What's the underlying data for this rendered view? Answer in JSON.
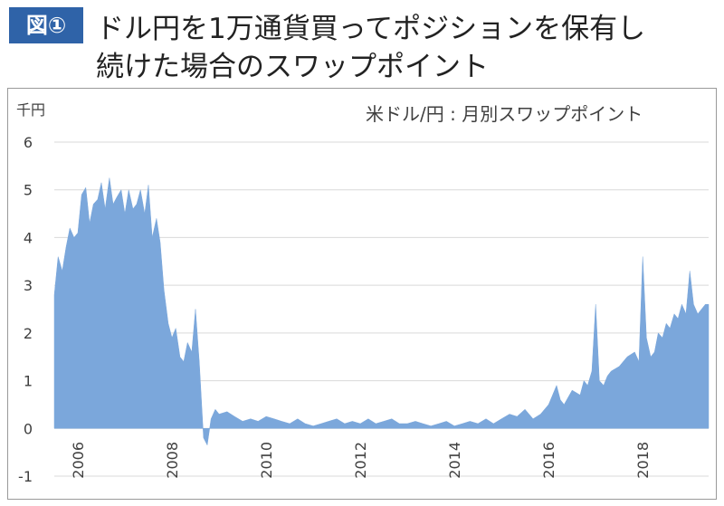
{
  "header": {
    "badge": "図①",
    "title_line1": "ドル円を1万通貨買ってポジションを保有し",
    "title_line2": "続けた場合のスワップポイント"
  },
  "chart_data": {
    "type": "area",
    "title": "米ドル/円 : 月別スワップポイント",
    "ylabel": "千円",
    "xlabel": "",
    "ylim": [
      -1,
      6
    ],
    "xlim": [
      2005.5,
      2019.4
    ],
    "yticks": [
      6,
      5,
      4,
      3,
      2,
      1,
      0,
      -1
    ],
    "negative_tick_color": "#e00000",
    "xticks": [
      2006,
      2008,
      2010,
      2012,
      2014,
      2016,
      2018
    ],
    "grid": true,
    "fill_color": "#7ba7db",
    "x": [
      2005.5,
      2005.58,
      2005.67,
      2005.75,
      2005.83,
      2005.92,
      2006.0,
      2006.08,
      2006.17,
      2006.25,
      2006.33,
      2006.42,
      2006.5,
      2006.58,
      2006.67,
      2006.75,
      2006.83,
      2006.92,
      2007.0,
      2007.08,
      2007.17,
      2007.25,
      2007.33,
      2007.42,
      2007.5,
      2007.58,
      2007.67,
      2007.75,
      2007.83,
      2007.92,
      2008.0,
      2008.08,
      2008.17,
      2008.25,
      2008.33,
      2008.42,
      2008.5,
      2008.58,
      2008.67,
      2008.75,
      2008.83,
      2008.92,
      2009.0,
      2009.17,
      2009.33,
      2009.5,
      2009.67,
      2009.83,
      2010.0,
      2010.17,
      2010.33,
      2010.5,
      2010.67,
      2010.83,
      2011.0,
      2011.17,
      2011.33,
      2011.5,
      2011.67,
      2011.83,
      2012.0,
      2012.17,
      2012.33,
      2012.5,
      2012.67,
      2012.83,
      2013.0,
      2013.17,
      2013.33,
      2013.5,
      2013.67,
      2013.83,
      2014.0,
      2014.17,
      2014.33,
      2014.5,
      2014.67,
      2014.83,
      2015.0,
      2015.17,
      2015.33,
      2015.5,
      2015.67,
      2015.83,
      2016.0,
      2016.17,
      2016.25,
      2016.33,
      2016.5,
      2016.67,
      2016.75,
      2016.83,
      2016.92,
      2017.0,
      2017.08,
      2017.17,
      2017.25,
      2017.33,
      2017.5,
      2017.67,
      2017.83,
      2017.92,
      2018.0,
      2018.08,
      2018.17,
      2018.25,
      2018.33,
      2018.42,
      2018.5,
      2018.58,
      2018.67,
      2018.75,
      2018.83,
      2018.92,
      2019.0,
      2019.08,
      2019.17,
      2019.25,
      2019.33,
      2019.4
    ],
    "y": [
      2.8,
      3.6,
      3.3,
      3.8,
      4.2,
      4.0,
      4.1,
      4.9,
      5.05,
      4.3,
      4.7,
      4.8,
      5.15,
      4.6,
      5.25,
      4.7,
      4.85,
      5.0,
      4.5,
      5.0,
      4.6,
      4.7,
      5.0,
      4.5,
      5.1,
      4.0,
      4.4,
      3.9,
      2.9,
      2.2,
      1.9,
      2.1,
      1.5,
      1.4,
      1.8,
      1.6,
      2.5,
      1.4,
      -0.2,
      -0.35,
      0.2,
      0.4,
      0.3,
      0.35,
      0.25,
      0.15,
      0.2,
      0.15,
      0.25,
      0.2,
      0.15,
      0.1,
      0.2,
      0.1,
      0.05,
      0.1,
      0.15,
      0.2,
      0.1,
      0.15,
      0.1,
      0.2,
      0.1,
      0.15,
      0.2,
      0.1,
      0.1,
      0.15,
      0.1,
      0.05,
      0.1,
      0.15,
      0.05,
      0.1,
      0.15,
      0.1,
      0.2,
      0.1,
      0.2,
      0.3,
      0.25,
      0.4,
      0.2,
      0.3,
      0.5,
      0.9,
      0.6,
      0.5,
      0.8,
      0.7,
      1.0,
      0.9,
      1.2,
      2.6,
      1.0,
      0.9,
      1.1,
      1.2,
      1.3,
      1.5,
      1.6,
      1.4,
      3.6,
      1.9,
      1.5,
      1.6,
      2.0,
      1.9,
      2.2,
      2.1,
      2.4,
      2.3,
      2.6,
      2.4,
      3.3,
      2.6,
      2.4,
      2.5,
      2.6,
      2.6
    ]
  }
}
